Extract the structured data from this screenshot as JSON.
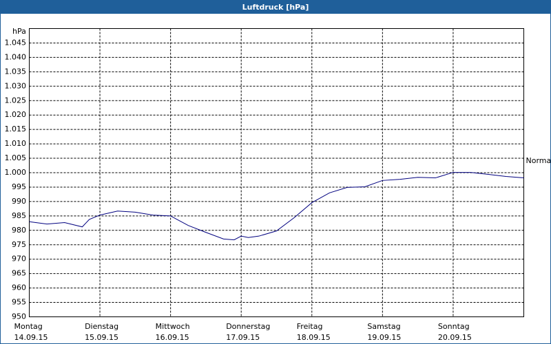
{
  "chart_data": {
    "type": "line",
    "title": "Luftdruck [hPa]",
    "y_unit": "hPa",
    "x": [
      0,
      0.25,
      0.5,
      0.75,
      0.85,
      1.0,
      1.25,
      1.5,
      1.75,
      2.0,
      2.25,
      2.5,
      2.75,
      2.9,
      3.0,
      3.1,
      3.25,
      3.5,
      3.75,
      4.0,
      4.25,
      4.5,
      4.75,
      5.0,
      5.25,
      5.5,
      5.75,
      6.0,
      6.25,
      6.5,
      6.75,
      7.0
    ],
    "series": [
      {
        "name": "Luftdruck",
        "color": "#00007f",
        "values": [
          983,
          982.2,
          982.7,
          981.2,
          983.8,
          985.3,
          986.7,
          986.3,
          985.3,
          985,
          981.7,
          979.3,
          977,
          976.7,
          978,
          977.5,
          978,
          979.8,
          984.4,
          989.6,
          993,
          994.9,
          995.1,
          997.3,
          997.7,
          998.4,
          998.2,
          1000.1,
          1000.1,
          999.4,
          998.7,
          998.2
        ]
      }
    ],
    "xlim": [
      0,
      7
    ],
    "xticks": [
      {
        "value": 0,
        "label": "Montag",
        "date": "14.09.15"
      },
      {
        "value": 1,
        "label": "Dienstag",
        "date": "15.09.15"
      },
      {
        "value": 2,
        "label": "Mittwoch",
        "date": "16.09.15"
      },
      {
        "value": 3,
        "label": "Donnerstag",
        "date": "17.09.15"
      },
      {
        "value": 4,
        "label": "Freitag",
        "date": "18.09.15"
      },
      {
        "value": 5,
        "label": "Samstag",
        "date": "19.09.15"
      },
      {
        "value": 6,
        "label": "Sonntag",
        "date": "20.09.15"
      }
    ],
    "ylim": [
      950,
      1050
    ],
    "yticks": [
      950,
      955,
      960,
      965,
      970,
      975,
      980,
      985,
      990,
      995,
      {
        "value": 1000,
        "label": "1.000"
      },
      {
        "value": 1005,
        "label": "1.005"
      },
      {
        "value": 1010,
        "label": "1.010"
      },
      {
        "value": 1015,
        "label": "1.015"
      },
      {
        "value": 1020,
        "label": "1.020"
      },
      {
        "value": 1025,
        "label": "1.025"
      },
      {
        "value": 1030,
        "label": "1.030"
      },
      {
        "value": 1035,
        "label": "1.035"
      },
      {
        "value": 1040,
        "label": "1.040"
      },
      {
        "value": 1045,
        "label": "1.045"
      }
    ],
    "reference": {
      "label": "Normal",
      "value": 1004
    },
    "grid": true
  }
}
